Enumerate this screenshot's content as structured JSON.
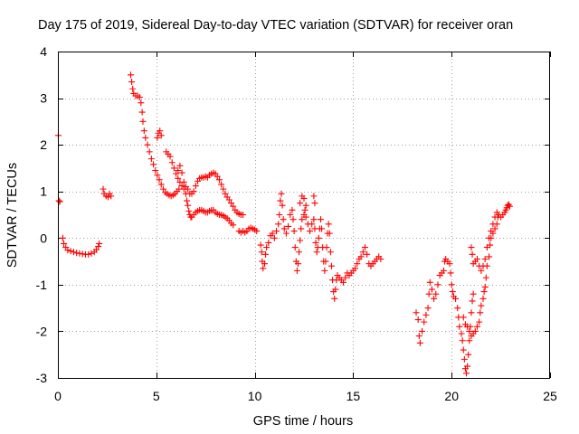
{
  "chart_data": {
    "type": "scatter",
    "title": "Day 175 of 2019, Sidereal Day-to-day VTEC variation (SDTVAR) for receiver oran",
    "xlabel": "GPS time / hours",
    "ylabel": "SDTVAR / TECUs",
    "xlim": [
      0,
      25
    ],
    "ylim": [
      -3,
      4
    ],
    "xticks": [
      0,
      5,
      10,
      15,
      20,
      25
    ],
    "yticks": [
      -3,
      -2,
      -1,
      0,
      1,
      2,
      3,
      4
    ],
    "grid": true,
    "marker": "+",
    "color": "#ff0000",
    "series": [
      {
        "name": "SDTVAR",
        "points": [
          [
            0.02,
            2.2
          ],
          [
            0.05,
            0.8
          ],
          [
            0.1,
            0.78
          ],
          [
            0.25,
            0.0
          ],
          [
            0.3,
            -0.12
          ],
          [
            0.4,
            -0.2
          ],
          [
            0.5,
            -0.26
          ],
          [
            0.65,
            -0.28
          ],
          [
            0.8,
            -0.3
          ],
          [
            0.95,
            -0.32
          ],
          [
            1.1,
            -0.33
          ],
          [
            1.25,
            -0.34
          ],
          [
            1.4,
            -0.35
          ],
          [
            1.55,
            -0.35
          ],
          [
            1.7,
            -0.33
          ],
          [
            1.85,
            -0.3
          ],
          [
            1.95,
            -0.25
          ],
          [
            2.05,
            -0.18
          ],
          [
            2.1,
            -0.12
          ],
          [
            2.3,
            1.05
          ],
          [
            2.35,
            0.95
          ],
          [
            2.45,
            0.9
          ],
          [
            2.55,
            0.88
          ],
          [
            2.62,
            0.95
          ],
          [
            2.7,
            0.9
          ],
          [
            3.7,
            3.5
          ],
          [
            3.75,
            3.35
          ],
          [
            3.8,
            3.2
          ],
          [
            3.85,
            3.1
          ],
          [
            3.95,
            3.05
          ],
          [
            4.05,
            3.05
          ],
          [
            4.15,
            3.02
          ],
          [
            4.22,
            2.9
          ],
          [
            4.28,
            2.7
          ],
          [
            4.32,
            2.5
          ],
          [
            4.38,
            2.3
          ],
          [
            4.45,
            2.15
          ],
          [
            4.55,
            2.0
          ],
          [
            4.65,
            1.85
          ],
          [
            4.75,
            1.7
          ],
          [
            4.85,
            1.58
          ],
          [
            4.95,
            1.45
          ],
          [
            5.05,
            1.35
          ],
          [
            5.15,
            1.25
          ],
          [
            5.25,
            1.15
          ],
          [
            5.35,
            1.05
          ],
          [
            5.45,
            0.98
          ],
          [
            5.55,
            0.95
          ],
          [
            5.65,
            0.92
          ],
          [
            5.75,
            0.9
          ],
          [
            5.85,
            0.92
          ],
          [
            5.95,
            0.95
          ],
          [
            6.05,
            1.0
          ],
          [
            6.15,
            1.05
          ],
          [
            5.05,
            2.15
          ],
          [
            5.1,
            2.25
          ],
          [
            5.18,
            2.3
          ],
          [
            5.25,
            2.2
          ],
          [
            5.5,
            1.85
          ],
          [
            5.6,
            1.8
          ],
          [
            5.7,
            1.75
          ],
          [
            5.8,
            1.62
          ],
          [
            5.9,
            1.5
          ],
          [
            6.0,
            1.38
          ],
          [
            6.1,
            1.28
          ],
          [
            6.2,
            1.2
          ],
          [
            6.3,
            1.12
          ],
          [
            6.4,
            1.05
          ],
          [
            6.5,
            0.95
          ],
          [
            6.55,
            0.8
          ],
          [
            6.6,
            0.7
          ],
          [
            6.65,
            0.58
          ],
          [
            6.7,
            0.5
          ],
          [
            6.75,
            0.45
          ],
          [
            6.1,
            1.45
          ],
          [
            6.2,
            1.55
          ],
          [
            6.3,
            1.4
          ],
          [
            6.4,
            1.2
          ],
          [
            6.5,
            1.1
          ],
          [
            6.6,
            1.05
          ],
          [
            6.7,
            0.95
          ],
          [
            6.8,
            0.95
          ],
          [
            6.9,
            1.0
          ],
          [
            7.0,
            1.12
          ],
          [
            7.1,
            1.22
          ],
          [
            7.2,
            1.28
          ],
          [
            7.3,
            1.3
          ],
          [
            7.4,
            1.3
          ],
          [
            7.5,
            1.32
          ],
          [
            7.6,
            1.3
          ],
          [
            7.7,
            1.35
          ],
          [
            7.8,
            1.38
          ],
          [
            7.9,
            1.4
          ],
          [
            8.0,
            1.38
          ],
          [
            8.1,
            1.32
          ],
          [
            8.2,
            1.25
          ],
          [
            8.3,
            1.15
          ],
          [
            8.4,
            1.05
          ],
          [
            8.5,
            0.95
          ],
          [
            8.6,
            0.88
          ],
          [
            8.7,
            0.82
          ],
          [
            8.8,
            0.75
          ],
          [
            8.9,
            0.68
          ],
          [
            9.0,
            0.6
          ],
          [
            9.1,
            0.55
          ],
          [
            9.2,
            0.52
          ],
          [
            9.3,
            0.5
          ],
          [
            9.4,
            0.5
          ],
          [
            6.8,
            0.45
          ],
          [
            6.9,
            0.5
          ],
          [
            7.0,
            0.55
          ],
          [
            7.1,
            0.58
          ],
          [
            7.2,
            0.6
          ],
          [
            7.3,
            0.6
          ],
          [
            7.4,
            0.58
          ],
          [
            7.5,
            0.55
          ],
          [
            7.6,
            0.55
          ],
          [
            7.7,
            0.58
          ],
          [
            7.8,
            0.6
          ],
          [
            7.9,
            0.6
          ],
          [
            8.0,
            0.55
          ],
          [
            8.1,
            0.52
          ],
          [
            8.2,
            0.5
          ],
          [
            8.3,
            0.5
          ],
          [
            8.4,
            0.48
          ],
          [
            8.5,
            0.45
          ],
          [
            8.6,
            0.42
          ],
          [
            8.7,
            0.38
          ],
          [
            8.8,
            0.32
          ],
          [
            8.9,
            0.28
          ],
          [
            9.2,
            0.15
          ],
          [
            9.3,
            0.12
          ],
          [
            9.4,
            0.15
          ],
          [
            9.5,
            0.12
          ],
          [
            9.6,
            0.15
          ],
          [
            9.7,
            0.2
          ],
          [
            9.8,
            0.22
          ],
          [
            9.9,
            0.2
          ],
          [
            10.0,
            0.18
          ],
          [
            10.1,
            0.15
          ],
          [
            10.3,
            -0.15
          ],
          [
            10.35,
            -0.3
          ],
          [
            10.38,
            -0.5
          ],
          [
            10.42,
            -0.65
          ],
          [
            10.5,
            -0.55
          ],
          [
            10.55,
            -0.35
          ],
          [
            10.6,
            -0.2
          ],
          [
            10.7,
            -0.1
          ],
          [
            10.8,
            0.05
          ],
          [
            10.9,
            0.1
          ],
          [
            11.0,
            0.0
          ],
          [
            11.1,
            0.15
          ],
          [
            11.2,
            0.3
          ],
          [
            11.25,
            0.5
          ],
          [
            11.3,
            0.8
          ],
          [
            11.35,
            0.95
          ],
          [
            11.4,
            0.7
          ],
          [
            11.45,
            0.4
          ],
          [
            11.5,
            0.2
          ],
          [
            11.6,
            0.1
          ],
          [
            11.7,
            0.25
          ],
          [
            11.8,
            0.5
          ],
          [
            11.9,
            0.6
          ],
          [
            11.95,
            0.4
          ],
          [
            12.0,
            0.15
          ],
          [
            12.05,
            -0.2
          ],
          [
            12.1,
            -0.5
          ],
          [
            12.15,
            -0.7
          ],
          [
            12.2,
            -0.55
          ],
          [
            12.25,
            -0.3
          ],
          [
            12.3,
            -0.05
          ],
          [
            12.35,
            0.2
          ],
          [
            12.4,
            0.4
          ],
          [
            12.5,
            0.5
          ],
          [
            12.55,
            0.6
          ],
          [
            12.6,
            0.45
          ],
          [
            12.7,
            0.3
          ],
          [
            12.8,
            0.15
          ],
          [
            12.9,
            0.3
          ],
          [
            13.0,
            0.4
          ],
          [
            13.05,
            0.2
          ],
          [
            13.1,
            -0.1
          ],
          [
            13.15,
            -0.3
          ],
          [
            13.2,
            -0.2
          ],
          [
            13.25,
            0.0
          ],
          [
            13.3,
            0.2
          ],
          [
            13.35,
            0.4
          ],
          [
            13.4,
            0.2
          ],
          [
            13.45,
            -0.2
          ],
          [
            13.5,
            -0.5
          ],
          [
            13.55,
            -0.7
          ],
          [
            13.6,
            -0.5
          ],
          [
            13.65,
            -0.2
          ],
          [
            13.7,
            0.1
          ],
          [
            13.75,
            0.3
          ],
          [
            13.8,
            0.1
          ],
          [
            13.85,
            -0.3
          ],
          [
            13.9,
            -0.6
          ],
          [
            13.95,
            -0.9
          ],
          [
            14.0,
            -1.15
          ],
          [
            14.05,
            -1.3
          ],
          [
            14.1,
            -1.1
          ],
          [
            14.15,
            -0.9
          ],
          [
            14.2,
            -0.8
          ],
          [
            14.3,
            -0.85
          ],
          [
            14.4,
            -0.9
          ],
          [
            14.5,
            -0.95
          ],
          [
            14.6,
            -0.85
          ],
          [
            14.7,
            -0.75
          ],
          [
            14.8,
            -0.8
          ],
          [
            14.9,
            -0.75
          ],
          [
            15.0,
            -0.7
          ],
          [
            15.1,
            -0.65
          ],
          [
            15.2,
            -0.55
          ],
          [
            15.3,
            -0.45
          ],
          [
            15.4,
            -0.4
          ],
          [
            15.5,
            -0.3
          ],
          [
            15.6,
            -0.2
          ],
          [
            15.7,
            -0.35
          ],
          [
            15.8,
            -0.55
          ],
          [
            15.9,
            -0.6
          ],
          [
            16.0,
            -0.55
          ],
          [
            16.1,
            -0.5
          ],
          [
            16.2,
            -0.45
          ],
          [
            16.3,
            -0.4
          ],
          [
            16.4,
            -0.45
          ],
          [
            12.3,
            0.75
          ],
          [
            12.4,
            0.9
          ],
          [
            12.5,
            0.85
          ],
          [
            12.6,
            0.7
          ],
          [
            13.0,
            0.9
          ],
          [
            13.05,
            0.75
          ],
          [
            18.2,
            -1.6
          ],
          [
            18.3,
            -1.75
          ],
          [
            18.35,
            -2.1
          ],
          [
            18.4,
            -2.25
          ],
          [
            18.5,
            -2.0
          ],
          [
            18.6,
            -1.8
          ],
          [
            18.7,
            -1.65
          ],
          [
            18.8,
            -1.5
          ],
          [
            18.85,
            -1.2
          ],
          [
            18.9,
            -0.95
          ],
          [
            19.0,
            -1.1
          ],
          [
            19.1,
            -1.3
          ],
          [
            19.2,
            -1.2
          ],
          [
            19.3,
            -1.0
          ],
          [
            19.4,
            -0.8
          ],
          [
            19.5,
            -0.75
          ],
          [
            19.6,
            -0.7
          ],
          [
            19.65,
            -0.5
          ],
          [
            19.7,
            -0.45
          ],
          [
            19.8,
            -0.5
          ],
          [
            19.9,
            -0.55
          ],
          [
            19.95,
            -0.75
          ],
          [
            20.0,
            -1.0
          ],
          [
            20.05,
            -1.15
          ],
          [
            20.1,
            -1.25
          ],
          [
            20.2,
            -1.3
          ],
          [
            20.3,
            -1.5
          ],
          [
            20.35,
            -1.7
          ],
          [
            20.4,
            -1.9
          ],
          [
            20.5,
            -2.05
          ],
          [
            20.55,
            -2.2
          ],
          [
            20.6,
            -2.4
          ],
          [
            20.65,
            -2.6
          ],
          [
            20.7,
            -2.8
          ],
          [
            20.75,
            -2.9
          ],
          [
            20.8,
            -2.75
          ],
          [
            20.85,
            -2.5
          ],
          [
            20.9,
            -2.2
          ],
          [
            20.95,
            -1.9
          ],
          [
            21.0,
            -1.6
          ],
          [
            21.05,
            -1.35
          ],
          [
            21.1,
            -1.2
          ],
          [
            20.6,
            -1.7
          ],
          [
            20.7,
            -1.85
          ],
          [
            20.8,
            -1.9
          ],
          [
            20.9,
            -2.0
          ],
          [
            21.0,
            -2.1
          ],
          [
            21.1,
            -2.05
          ],
          [
            21.2,
            -2.0
          ],
          [
            21.3,
            -1.9
          ],
          [
            21.4,
            -1.8
          ],
          [
            21.45,
            -1.6
          ],
          [
            21.5,
            -1.45
          ],
          [
            21.6,
            -1.3
          ],
          [
            21.65,
            -1.15
          ],
          [
            21.7,
            -1.05
          ],
          [
            21.75,
            -0.85
          ],
          [
            21.8,
            -0.6
          ],
          [
            21.9,
            -0.4
          ],
          [
            21.95,
            -0.15
          ],
          [
            22.0,
            0.0
          ],
          [
            22.1,
            0.1
          ],
          [
            22.2,
            0.2
          ],
          [
            22.3,
            0.3
          ],
          [
            22.35,
            0.45
          ],
          [
            22.4,
            0.5
          ],
          [
            22.5,
            0.45
          ],
          [
            22.6,
            0.5
          ],
          [
            22.7,
            0.55
          ],
          [
            22.75,
            0.6
          ],
          [
            22.8,
            0.65
          ],
          [
            22.85,
            0.7
          ],
          [
            22.9,
            0.72
          ],
          [
            22.95,
            0.68
          ],
          [
            21.0,
            -0.2
          ],
          [
            21.05,
            -0.35
          ],
          [
            21.1,
            -0.55
          ],
          [
            21.2,
            -0.5
          ],
          [
            21.3,
            -0.45
          ],
          [
            21.4,
            -0.6
          ],
          [
            21.5,
            -0.7
          ],
          [
            21.6,
            -0.6
          ],
          [
            21.7,
            -0.45
          ],
          [
            21.8,
            -0.2
          ],
          [
            21.9,
            0.0
          ],
          [
            22.0,
            0.15
          ],
          [
            22.1,
            0.3
          ],
          [
            22.2,
            0.45
          ],
          [
            22.3,
            0.55
          ]
        ]
      }
    ]
  }
}
